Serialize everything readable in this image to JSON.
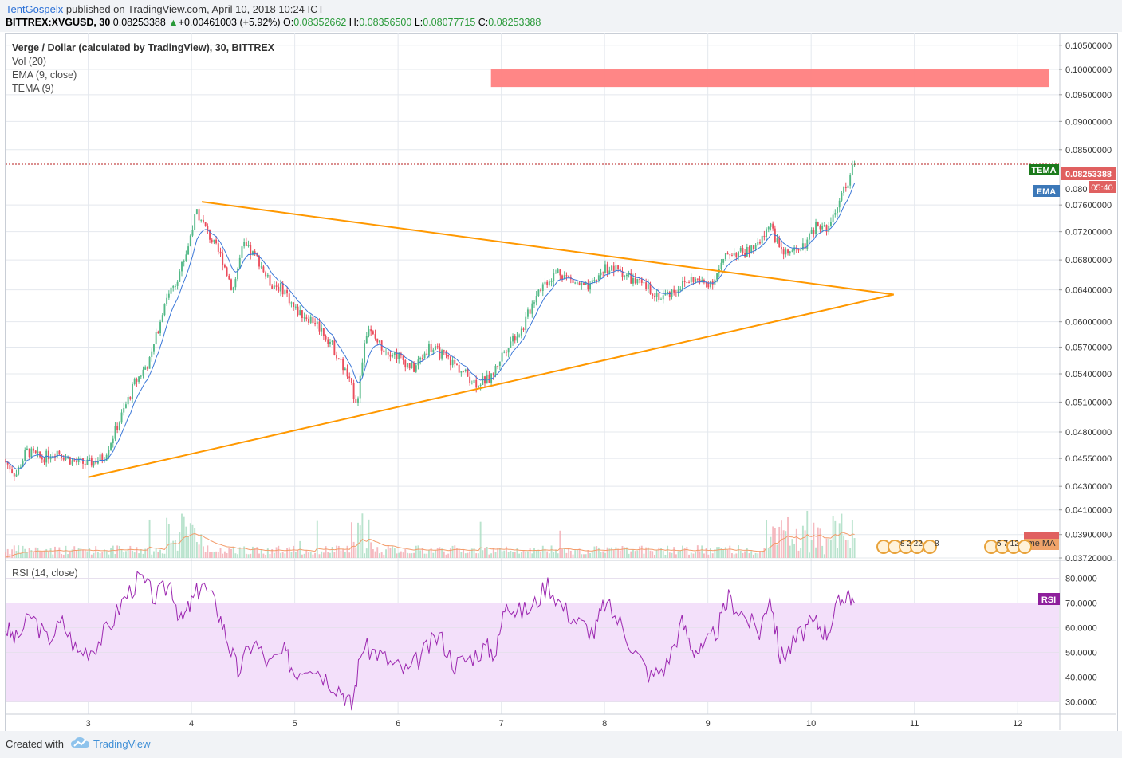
{
  "header": {
    "author": "TentGospelx",
    "published_text": "published on TradingView.com, April 10, 2018 10:24 ICT",
    "symbol": "BITTREX:XVGUSD, 30",
    "last": "0.08253388",
    "change_arrow": "▲",
    "change": "+0.00461003 (+5.92%)",
    "o_label": "O:",
    "o_value": "0.08352662",
    "h_label": "H:",
    "h_value": "0.08356500",
    "l_label": "L:",
    "l_value": "0.08077715",
    "c_label": "C:",
    "c_value": "0.08253388"
  },
  "legend": {
    "title": "Verge / Dollar (calculated by TradingView), 30, BITTREX",
    "vol": "Vol (20)",
    "ema": "EMA (9, close)",
    "tema": "TEMA (9)",
    "rsi": "RSI (14, close)"
  },
  "price_badges": {
    "tema_label": "TEMA",
    "last_price": "0.08253388",
    "countdown": "05:40",
    "ema_label": "EMA",
    "price_axis_partial": "0.080",
    "volume_ma_label": "me MA",
    "rsi_label": "RSI"
  },
  "event_badges": {
    "group1_text": "8 2 22",
    "group2_text": "8",
    "group3_text": "5 7 12"
  },
  "colors": {
    "up": "#53b987",
    "down": "#eb4d5c",
    "trendline": "#ff9800",
    "ema": "#3c78d8",
    "tema": "#2e7d32",
    "rsi_line": "#9c27b0",
    "rsi_band": "#f3e0fa",
    "resistance_zone": "#ff7f7f",
    "last_price_line": "#b71c1c"
  },
  "footer": {
    "created_with": "Created with",
    "brand": "TradingView"
  },
  "chart_data": {
    "type": "candlestick",
    "title": "Verge / Dollar (calculated by TradingView), 30, BITTREX",
    "x_tick_labels": [
      "3",
      "4",
      "5",
      "6",
      "7",
      "8",
      "9",
      "10",
      "11",
      "12"
    ],
    "x_range_days": [
      2.2,
      12.4
    ],
    "y_tick_labels": [
      "0.03720000",
      "0.03900000",
      "0.04100000",
      "0.04300000",
      "0.04550000",
      "0.04800000",
      "0.05100000",
      "0.05400000",
      "0.05700000",
      "0.06000000",
      "0.06400000",
      "0.06800000",
      "0.07200000",
      "0.07600000",
      "0.08500000",
      "0.09000000",
      "0.09500000",
      "0.10000000",
      "0.10500000"
    ],
    "y_scale": "log",
    "y_range": [
      0.0372,
      0.1065
    ],
    "close_path": [
      [
        2.2,
        0.0452
      ],
      [
        2.3,
        0.044
      ],
      [
        2.4,
        0.0462
      ],
      [
        2.55,
        0.0455
      ],
      [
        2.7,
        0.0462
      ],
      [
        2.85,
        0.0452
      ],
      [
        3.0,
        0.045
      ],
      [
        3.15,
        0.0456
      ],
      [
        3.3,
        0.049
      ],
      [
        3.45,
        0.053
      ],
      [
        3.6,
        0.0555
      ],
      [
        3.75,
        0.063
      ],
      [
        3.85,
        0.0652
      ],
      [
        3.95,
        0.069
      ],
      [
        4.05,
        0.0752
      ],
      [
        4.15,
        0.072
      ],
      [
        4.3,
        0.068
      ],
      [
        4.4,
        0.064
      ],
      [
        4.5,
        0.07
      ],
      [
        4.65,
        0.068
      ],
      [
        4.75,
        0.065
      ],
      [
        4.9,
        0.064
      ],
      [
        5.0,
        0.0615
      ],
      [
        5.2,
        0.06
      ],
      [
        5.35,
        0.0575
      ],
      [
        5.5,
        0.054
      ],
      [
        5.6,
        0.051
      ],
      [
        5.7,
        0.059
      ],
      [
        5.85,
        0.057
      ],
      [
        6.0,
        0.056
      ],
      [
        6.15,
        0.0545
      ],
      [
        6.3,
        0.057
      ],
      [
        6.45,
        0.056
      ],
      [
        6.6,
        0.0545
      ],
      [
        6.75,
        0.053
      ],
      [
        6.9,
        0.0535
      ],
      [
        7.0,
        0.056
      ],
      [
        7.1,
        0.058
      ],
      [
        7.2,
        0.059
      ],
      [
        7.35,
        0.064
      ],
      [
        7.55,
        0.0665
      ],
      [
        7.7,
        0.065
      ],
      [
        7.85,
        0.064
      ],
      [
        8.0,
        0.067
      ],
      [
        8.15,
        0.0665
      ],
      [
        8.3,
        0.065
      ],
      [
        8.45,
        0.064
      ],
      [
        8.55,
        0.063
      ],
      [
        8.7,
        0.0642
      ],
      [
        8.85,
        0.0655
      ],
      [
        8.95,
        0.0648
      ],
      [
        9.05,
        0.0652
      ],
      [
        9.2,
        0.069
      ],
      [
        9.35,
        0.069
      ],
      [
        9.5,
        0.07
      ],
      [
        9.6,
        0.0735
      ],
      [
        9.7,
        0.069
      ],
      [
        9.85,
        0.069
      ],
      [
        9.95,
        0.07
      ],
      [
        10.05,
        0.073
      ],
      [
        10.15,
        0.072
      ],
      [
        10.25,
        0.076
      ],
      [
        10.35,
        0.0795
      ],
      [
        10.42,
        0.08253388
      ]
    ],
    "volume_range_hint": "low baseline with spikes near day 3.8, day 5.6 and day 9.6–10.4",
    "resistance_zone": {
      "day_from": 6.9,
      "day_to": 12.3,
      "price_low": 0.0965,
      "price_high": 0.1
    },
    "last_price": 0.08253388,
    "trendlines": [
      {
        "name": "upper",
        "from": [
          4.1,
          0.0765
        ],
        "to": [
          10.8,
          0.0634
        ]
      },
      {
        "name": "lower",
        "from": [
          3.0,
          0.0438
        ],
        "to": [
          10.8,
          0.0634
        ]
      }
    ],
    "rsi": {
      "ylim": [
        25,
        85
      ],
      "ticks": [
        "30.0000",
        "40.0000",
        "50.0000",
        "60.0000",
        "70.0000",
        "80.0000"
      ],
      "bands": [
        30,
        70
      ],
      "points": [
        [
          2.2,
          60
        ],
        [
          2.3,
          55
        ],
        [
          2.45,
          65
        ],
        [
          2.6,
          55
        ],
        [
          2.75,
          62
        ],
        [
          2.9,
          50
        ],
        [
          3.05,
          52
        ],
        [
          3.2,
          60
        ],
        [
          3.35,
          72
        ],
        [
          3.5,
          80
        ],
        [
          3.65,
          72
        ],
        [
          3.8,
          78
        ],
        [
          3.9,
          62
        ],
        [
          4.0,
          70
        ],
        [
          4.1,
          78
        ],
        [
          4.25,
          68
        ],
        [
          4.35,
          55
        ],
        [
          4.45,
          42
        ],
        [
          4.6,
          55
        ],
        [
          4.75,
          45
        ],
        [
          4.9,
          50
        ],
        [
          5.0,
          42
        ],
        [
          5.15,
          46
        ],
        [
          5.3,
          40
        ],
        [
          5.45,
          35
        ],
        [
          5.55,
          28
        ],
        [
          5.65,
          52
        ],
        [
          5.8,
          50
        ],
        [
          5.95,
          45
        ],
        [
          6.1,
          42
        ],
        [
          6.25,
          50
        ],
        [
          6.4,
          57
        ],
        [
          6.55,
          45
        ],
        [
          6.7,
          48
        ],
        [
          6.85,
          52
        ],
        [
          6.95,
          50
        ],
        [
          7.05,
          72
        ],
        [
          7.15,
          66
        ],
        [
          7.3,
          68
        ],
        [
          7.45,
          78
        ],
        [
          7.6,
          68
        ],
        [
          7.75,
          62
        ],
        [
          7.9,
          58
        ],
        [
          8.0,
          70
        ],
        [
          8.15,
          62
        ],
        [
          8.3,
          50
        ],
        [
          8.45,
          40
        ],
        [
          8.6,
          45
        ],
        [
          8.75,
          62
        ],
        [
          8.85,
          52
        ],
        [
          8.95,
          50
        ],
        [
          9.1,
          60
        ],
        [
          9.2,
          72
        ],
        [
          9.35,
          65
        ],
        [
          9.5,
          58
        ],
        [
          9.6,
          74
        ],
        [
          9.7,
          48
        ],
        [
          9.8,
          52
        ],
        [
          9.95,
          60
        ],
        [
          10.05,
          62
        ],
        [
          10.15,
          58
        ],
        [
          10.25,
          68
        ],
        [
          10.35,
          75
        ],
        [
          10.42,
          70
        ]
      ]
    }
  }
}
